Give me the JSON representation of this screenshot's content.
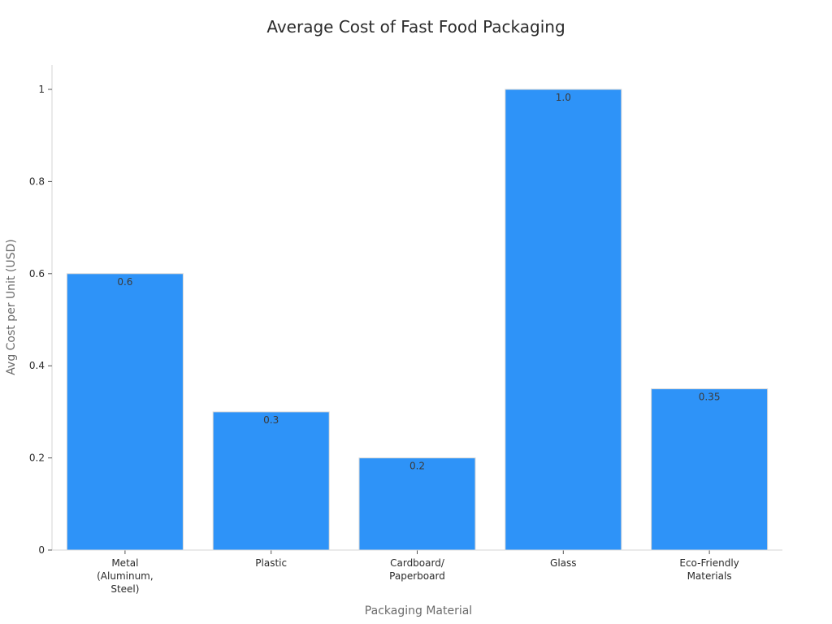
{
  "chart_data": {
    "type": "bar",
    "title": "Average Cost of Fast Food Packaging",
    "xlabel": "Packaging Material",
    "ylabel": "Avg Cost per Unit (USD)",
    "categories": [
      [
        "Metal",
        "(Aluminum,",
        "Steel)"
      ],
      [
        "Plastic"
      ],
      [
        "Cardboard/",
        "Paperboard"
      ],
      [
        "Glass"
      ],
      [
        "Eco-Friendly",
        "Materials"
      ]
    ],
    "values": [
      0.6,
      0.3,
      0.2,
      1.0,
      0.35
    ],
    "value_labels": [
      "0.6",
      "0.3",
      "0.2",
      "1.0",
      "0.35"
    ],
    "ylim": [
      0,
      1.05
    ],
    "yticks": [
      0,
      0.2,
      0.4,
      0.6,
      0.8,
      1
    ],
    "ytick_labels": [
      "0",
      "0.2",
      "0.4",
      "0.6",
      "0.8",
      "1"
    ],
    "grid": false,
    "legend": "none",
    "bar_color": "#2e93f8"
  }
}
